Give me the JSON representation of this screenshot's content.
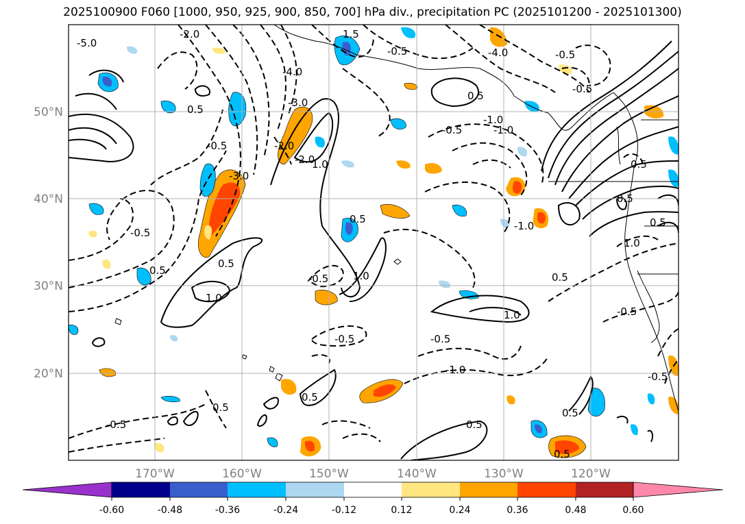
{
  "title": "2025100900 F060 [1000, 950, 925, 900, 850, 700] hPa div., precipitation PC (2025101200 - 2025101300)",
  "map": {
    "lat_labels": [
      "50°N",
      "40°N",
      "30°N",
      "20°N"
    ],
    "lon_labels": [
      "170°W",
      "160°W",
      "150°W",
      "140°W",
      "130°W",
      "120°W"
    ],
    "gridline_color": "#b0b0b0"
  },
  "contour_labels": [
    "-5.0",
    "0.5",
    "-2.0",
    "-0.5",
    "-2.0",
    "-0.5",
    "0.5",
    "-4.0",
    "-3.0",
    "-2.0",
    "1.0",
    "1.5",
    "-0.5",
    "-1.0",
    "-3.0",
    "-0.5",
    "0.5",
    "1.0",
    "0.5",
    "-0.5",
    "1.0",
    "0.5",
    "-0.5",
    "-1.0",
    "0.5",
    "-0.5",
    "1.0",
    "0.5",
    "-0.5",
    "0.5",
    "0.5",
    "-1.0",
    "0.5",
    "0.5",
    "1.0",
    "-0.5",
    "-0.5",
    "0.5",
    "0.5",
    "-0.5",
    "0.5",
    "-4.0",
    "-1.0",
    "-0.5"
  ],
  "colorbar": {
    "tick_labels": [
      "-0.60",
      "-0.48",
      "-0.36",
      "-0.24",
      "-0.12",
      "0.12",
      "0.24",
      "0.36",
      "0.48",
      "0.60"
    ],
    "colors": [
      "#9932cc",
      "#00008b",
      "#3a5fcd",
      "#00bfff",
      "#add8f0",
      "#ffffff",
      "#ffe680",
      "#ffa500",
      "#ff4500",
      "#b22222",
      "#ff88aa"
    ]
  }
}
